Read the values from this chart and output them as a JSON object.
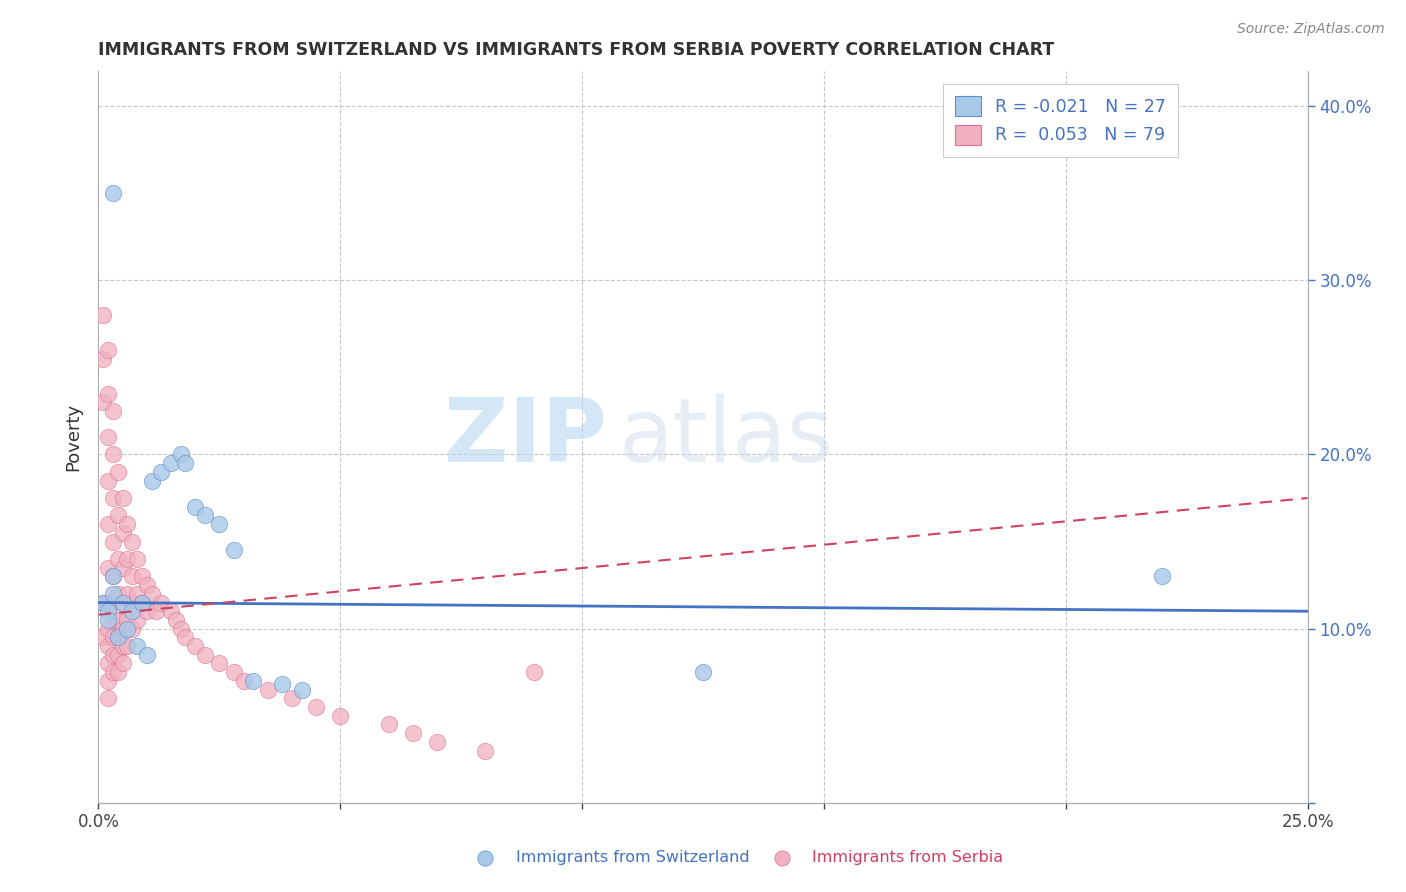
{
  "title": "IMMIGRANTS FROM SWITZERLAND VS IMMIGRANTS FROM SERBIA POVERTY CORRELATION CHART",
  "source": "Source: ZipAtlas.com",
  "ylabel": "Poverty",
  "xlim": [
    0.0,
    0.25
  ],
  "ylim": [
    0.0,
    0.42
  ],
  "xticks": [
    0.0,
    0.05,
    0.1,
    0.15,
    0.2,
    0.25
  ],
  "xticklabels": [
    "0.0%",
    "",
    "",
    "",
    "",
    "25.0%"
  ],
  "yticks": [
    0.0,
    0.1,
    0.2,
    0.3,
    0.4
  ],
  "yticklabels_right": [
    "",
    "10.0%",
    "20.0%",
    "30.0%",
    "40.0%"
  ],
  "watermark": "ZIPatlas",
  "color_switzerland": "#a8c8e8",
  "color_serbia": "#f0b0c0",
  "trendline_switzerland": "#4472c4",
  "trendline_serbia": "#d04060",
  "background_color": "#ffffff",
  "grid_color": "#c8c8c8",
  "sw_x": [
    0.001,
    0.002,
    0.002,
    0.003,
    0.003,
    0.004,
    0.005,
    0.006,
    0.007,
    0.008,
    0.009,
    0.01,
    0.011,
    0.013,
    0.015,
    0.017,
    0.018,
    0.02,
    0.022,
    0.025,
    0.028,
    0.032,
    0.038,
    0.042,
    0.125,
    0.22,
    0.003
  ],
  "sw_y": [
    0.115,
    0.11,
    0.105,
    0.12,
    0.13,
    0.095,
    0.115,
    0.1,
    0.11,
    0.09,
    0.115,
    0.085,
    0.185,
    0.19,
    0.195,
    0.2,
    0.195,
    0.17,
    0.165,
    0.16,
    0.145,
    0.07,
    0.068,
    0.065,
    0.075,
    0.13,
    0.35
  ],
  "serb_x": [
    0.001,
    0.001,
    0.001,
    0.001,
    0.001,
    0.002,
    0.002,
    0.002,
    0.002,
    0.002,
    0.002,
    0.002,
    0.002,
    0.002,
    0.002,
    0.002,
    0.002,
    0.003,
    0.003,
    0.003,
    0.003,
    0.003,
    0.003,
    0.003,
    0.003,
    0.003,
    0.003,
    0.004,
    0.004,
    0.004,
    0.004,
    0.004,
    0.004,
    0.004,
    0.004,
    0.005,
    0.005,
    0.005,
    0.005,
    0.005,
    0.005,
    0.005,
    0.006,
    0.006,
    0.006,
    0.006,
    0.006,
    0.007,
    0.007,
    0.007,
    0.007,
    0.008,
    0.008,
    0.008,
    0.009,
    0.009,
    0.01,
    0.01,
    0.011,
    0.012,
    0.013,
    0.015,
    0.016,
    0.017,
    0.018,
    0.02,
    0.022,
    0.025,
    0.028,
    0.03,
    0.035,
    0.04,
    0.045,
    0.05,
    0.06,
    0.065,
    0.07,
    0.08,
    0.09
  ],
  "serb_y": [
    0.28,
    0.255,
    0.23,
    0.115,
    0.095,
    0.26,
    0.235,
    0.21,
    0.185,
    0.16,
    0.135,
    0.115,
    0.1,
    0.09,
    0.08,
    0.07,
    0.06,
    0.225,
    0.2,
    0.175,
    0.15,
    0.13,
    0.115,
    0.105,
    0.095,
    0.085,
    0.075,
    0.19,
    0.165,
    0.14,
    0.12,
    0.105,
    0.095,
    0.085,
    0.075,
    0.175,
    0.155,
    0.135,
    0.115,
    0.1,
    0.09,
    0.08,
    0.16,
    0.14,
    0.12,
    0.105,
    0.09,
    0.15,
    0.13,
    0.115,
    0.1,
    0.14,
    0.12,
    0.105,
    0.13,
    0.115,
    0.125,
    0.11,
    0.12,
    0.11,
    0.115,
    0.11,
    0.105,
    0.1,
    0.095,
    0.09,
    0.085,
    0.08,
    0.075,
    0.07,
    0.065,
    0.06,
    0.055,
    0.05,
    0.045,
    0.04,
    0.035,
    0.03,
    0.075
  ]
}
